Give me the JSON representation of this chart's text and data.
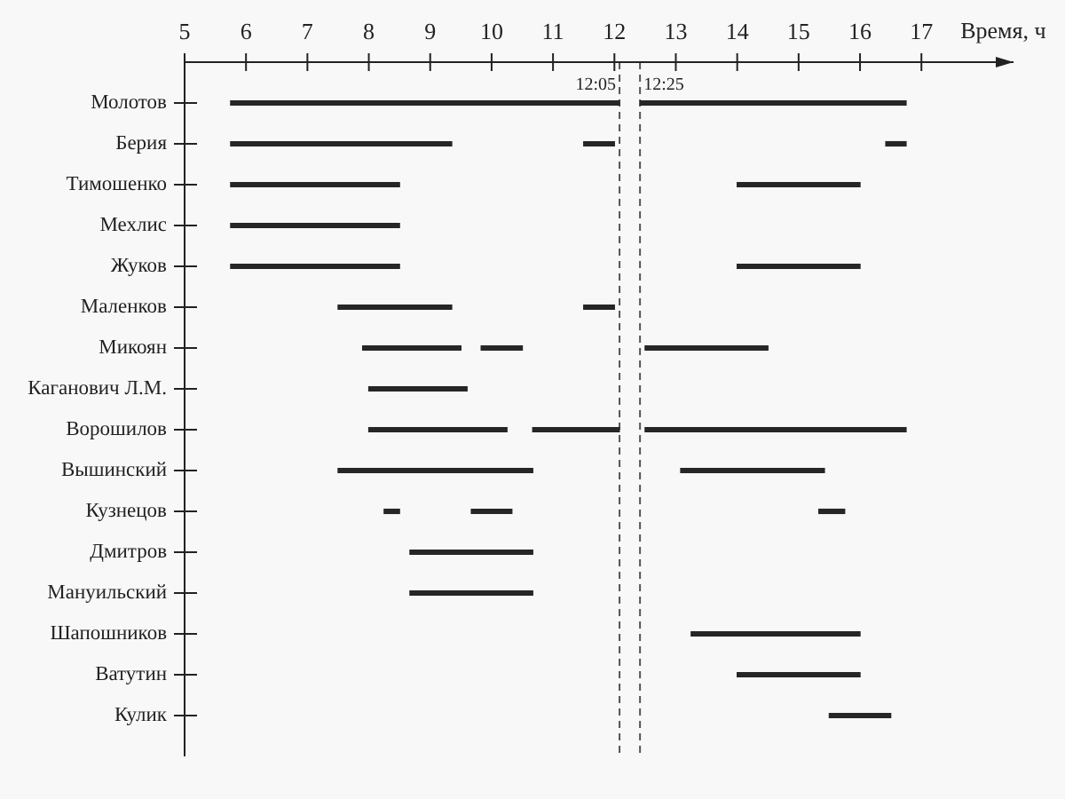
{
  "chart_data": {
    "type": "bar",
    "orientation": "horizontal",
    "xlabel": "Время, ч",
    "categories": [
      "Молотов",
      "Берия",
      "Тимошенко",
      "Мехлис",
      "Жуков",
      "Маленков",
      "Микоян",
      "Каганович Л.М.",
      "Ворошилов",
      "Вышинский",
      "Кузнецов",
      "Дмитров",
      "Мануильский",
      "Шапошников",
      "Ватутин",
      "Кулик"
    ],
    "series": [
      {
        "color": "#262626",
        "base": [
          5.75,
          5.75,
          5.75,
          5.75,
          5.75,
          7.5,
          7.9,
          8.0,
          8.0,
          7.5,
          8.25,
          8.67,
          8.67,
          13.25,
          14.0,
          15.5
        ],
        "values": [
          6.33,
          3.6,
          2.75,
          2.75,
          2.75,
          1.85,
          1.6,
          1.6,
          2.25,
          3.17,
          0.25,
          2.0,
          2.0,
          2.75,
          2.0,
          1.0
        ]
      },
      {
        "color": "#262626",
        "base": [
          12.42,
          11.5,
          14.0,
          null,
          14.0,
          11.5,
          9.83,
          null,
          10.67,
          13.08,
          9.67,
          null,
          null,
          null,
          null,
          null
        ],
        "values": [
          4.33,
          0.5,
          2.0,
          null,
          2.0,
          0.5,
          0.67,
          null,
          1.41,
          2.34,
          0.66,
          null,
          null,
          null,
          null,
          null
        ]
      },
      {
        "color": "#262626",
        "base": [
          null,
          16.42,
          null,
          null,
          null,
          null,
          12.5,
          null,
          12.5,
          null,
          15.33,
          null,
          null,
          null,
          null,
          null
        ],
        "values": [
          null,
          0.33,
          null,
          null,
          null,
          null,
          2.0,
          null,
          4.25,
          null,
          0.42,
          null,
          null,
          null,
          null,
          null
        ]
      }
    ],
    "xlim": [
      5,
      18.5
    ],
    "xticks": [
      5,
      6,
      7,
      8,
      9,
      10,
      11,
      12,
      13,
      14,
      15,
      16,
      17
    ],
    "ref_lines": [
      {
        "axis": "x",
        "value": 12.0833,
        "label": "12:05",
        "line_style": "dashed",
        "color": "#555555"
      },
      {
        "axis": "x",
        "value": 12.4167,
        "label": "12:25",
        "line_style": "dashed",
        "color": "#555555"
      }
    ]
  }
}
